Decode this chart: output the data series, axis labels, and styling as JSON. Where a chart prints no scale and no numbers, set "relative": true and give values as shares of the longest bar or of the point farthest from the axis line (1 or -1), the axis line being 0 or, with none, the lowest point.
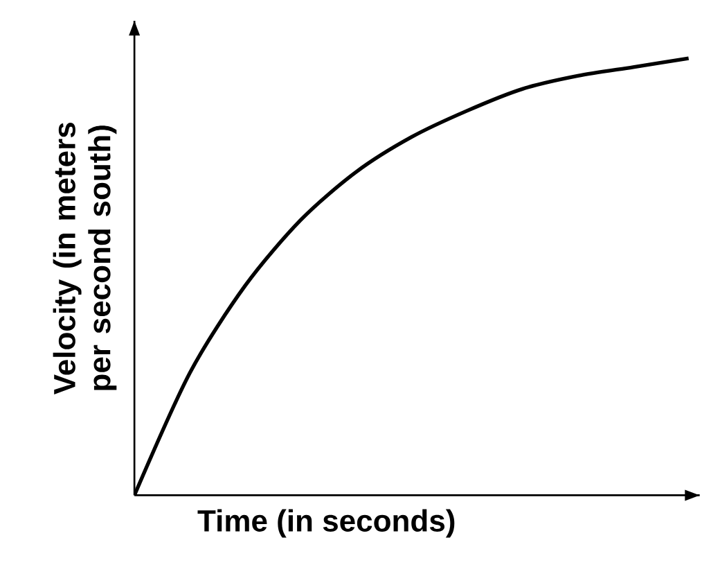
{
  "chart_data": {
    "type": "line",
    "relative": true,
    "xlabel": "Time (in seconds)",
    "ylabel": "Velocity (in meters per second south)",
    "categories": [
      null,
      null,
      null,
      null,
      null,
      null,
      null,
      null,
      null,
      null,
      null
    ],
    "values": [
      0,
      0.28,
      0.48,
      0.63,
      0.74,
      0.82,
      0.88,
      0.93,
      0.96,
      0.98,
      1.0
    ],
    "color": "#000000",
    "marker": "none"
  }
}
